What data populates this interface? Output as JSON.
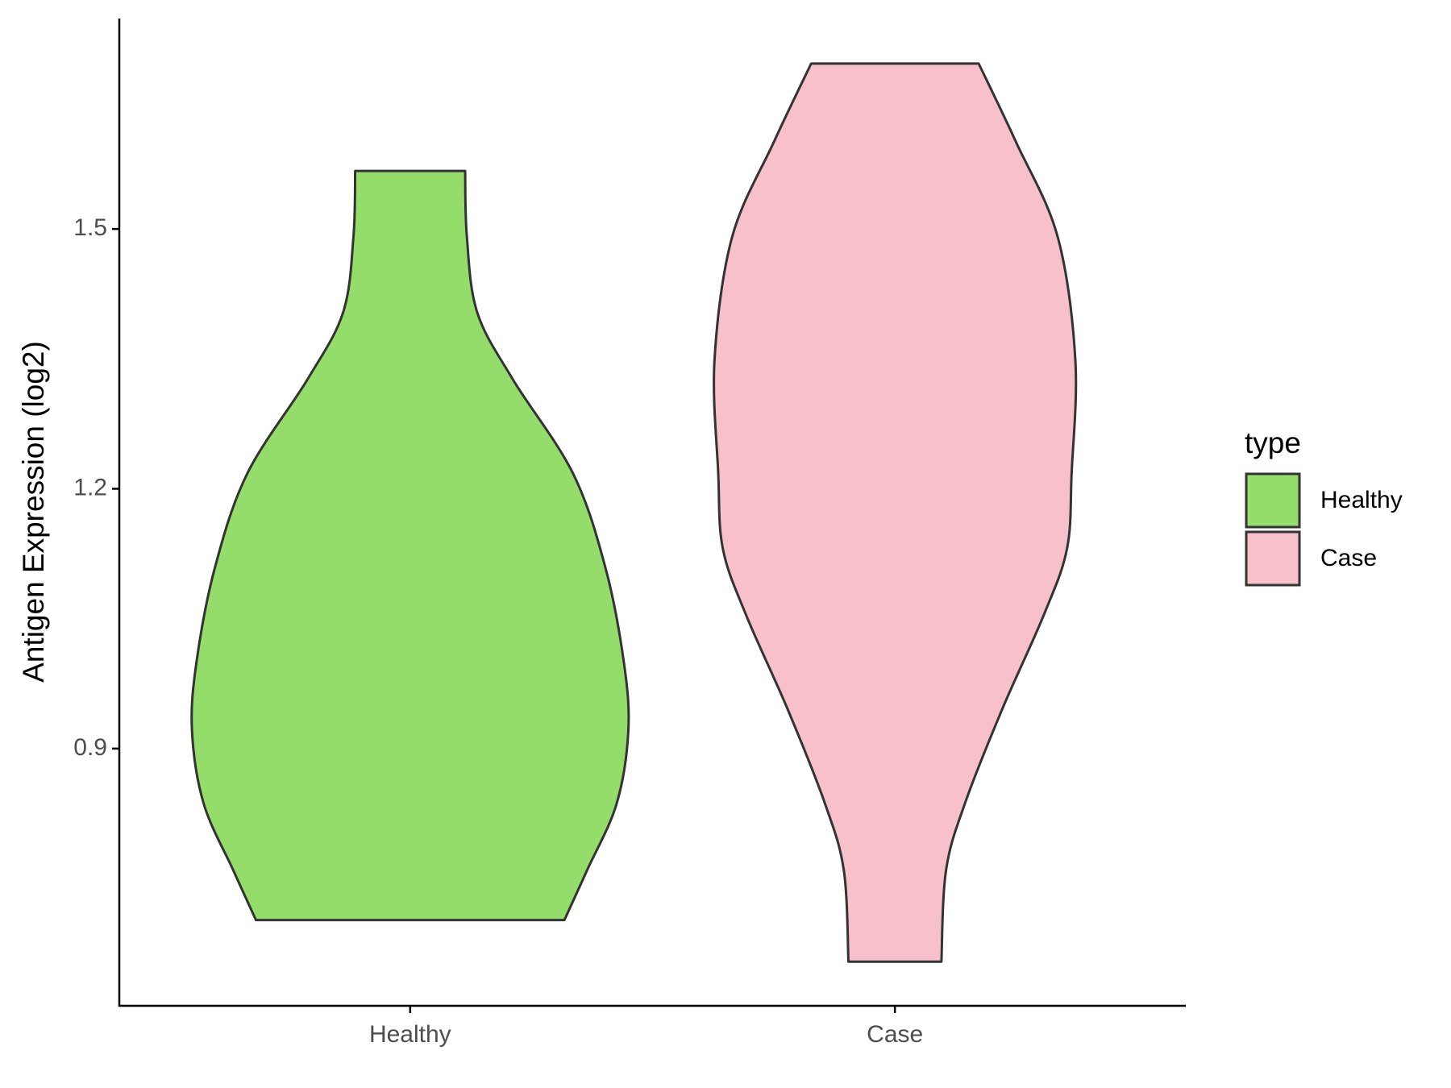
{
  "chart_data": {
    "type": "violin",
    "y_label": "Antigen Expression (log2)",
    "categories": [
      "Healthy",
      "Case"
    ],
    "series": [
      {
        "name": "Healthy",
        "color": "#94dd6a",
        "y": [
          1.567,
          1.491,
          1.404,
          1.327,
          1.218,
          1.109,
          0.999,
          0.92,
          0.836,
          0.759,
          0.702
        ],
        "width": [
          0.252,
          0.26,
          0.307,
          0.469,
          0.746,
          0.895,
          0.98,
          1.0,
          0.946,
          0.81,
          0.707
        ]
      },
      {
        "name": "Case",
        "color": "#f7c0cb",
        "y": [
          1.691,
          1.601,
          1.491,
          1.349,
          1.218,
          1.131,
          1.054,
          0.945,
          0.836,
          0.759,
          0.654
        ],
        "width": [
          0.384,
          0.554,
          0.746,
          0.827,
          0.81,
          0.789,
          0.682,
          0.491,
          0.32,
          0.234,
          0.213
        ]
      }
    ],
    "ylim": [
      0.603,
      1.743
    ],
    "yticks": [
      0.9,
      1.2,
      1.5
    ],
    "legend_title": "type",
    "legend_position": "right"
  }
}
